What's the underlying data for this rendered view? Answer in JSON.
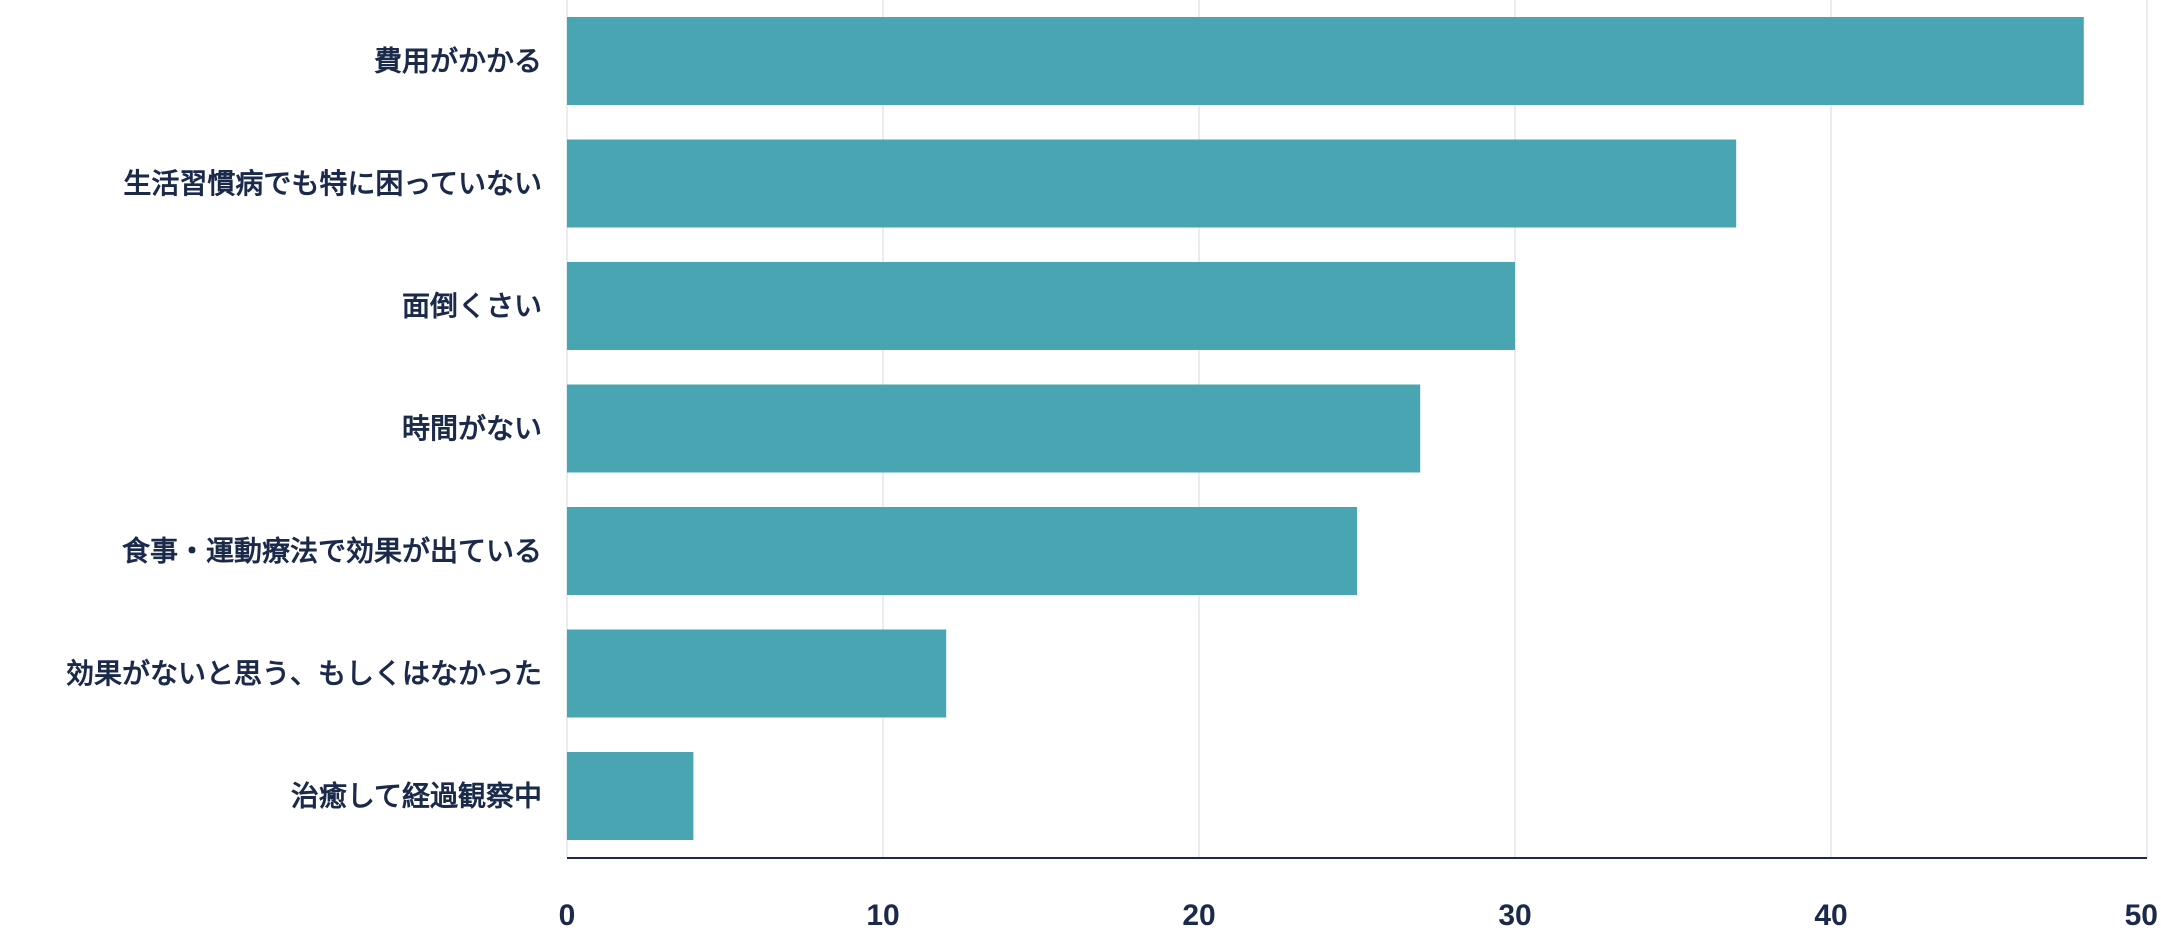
{
  "chart_data": {
    "type": "bar",
    "orientation": "horizontal",
    "title": "",
    "xlabel": "",
    "ylabel": "",
    "categories": [
      "費用がかかる",
      "生活習慣病でも特に困っていない",
      "面倒くさい",
      "時間がない",
      "食事・運動療法で効果が出ている",
      "効果がないと思う、もしくはなかった",
      "治癒して経過観察中"
    ],
    "values": [
      48,
      37,
      30,
      27,
      25,
      12,
      4
    ],
    "xlim": [
      0,
      50
    ],
    "xticks": [
      "0",
      "10",
      "20",
      "30",
      "40",
      "50"
    ],
    "grid": "vertical",
    "legend": "none",
    "bar_color": "#4aa5b2",
    "text_color": "#1b2a4a"
  }
}
